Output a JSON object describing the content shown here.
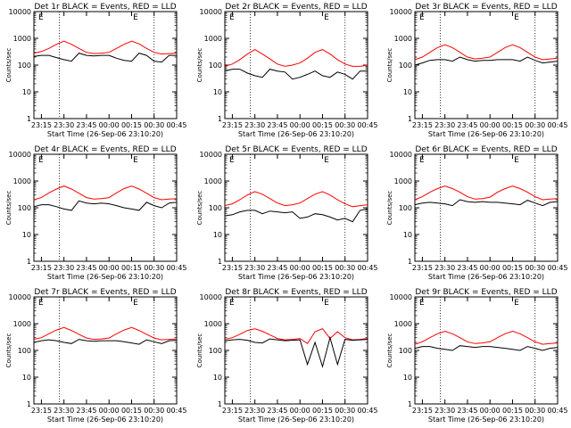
{
  "figure": {
    "background": "#ffffff"
  },
  "chart_data": [
    {
      "type": "line",
      "title": "Det 1r BLACK = Events, RED = LLD",
      "ylabel": "Counts/sec",
      "xlabel": "Start Time (26-Sep-06 23:10:20)",
      "ylim": [
        1,
        10000
      ],
      "yscale": "log",
      "grid": false,
      "top_marker": "E",
      "x_ticks": [
        "23:15",
        "23:30",
        "23:45",
        "00:00",
        "00:15",
        "00:30",
        "00:45"
      ],
      "y_ticks": [
        "1",
        "10",
        "100",
        "1000",
        "10000"
      ],
      "series": [
        {
          "color": "#ff0000",
          "x": [
            0,
            5,
            10,
            15,
            20,
            25,
            30,
            35,
            40,
            45,
            50,
            55,
            60,
            65,
            70,
            75,
            80,
            85,
            90,
            95
          ],
          "values": [
            280,
            320,
            420,
            600,
            780,
            600,
            420,
            300,
            270,
            280,
            300,
            420,
            600,
            780,
            620,
            420,
            300,
            260,
            270,
            280
          ]
        },
        {
          "color": "#000000",
          "x": [
            0,
            5,
            10,
            15,
            20,
            25,
            30,
            35,
            40,
            45,
            50,
            55,
            60,
            65,
            70,
            75,
            80,
            85,
            90,
            95
          ],
          "values": [
            210,
            230,
            230,
            190,
            160,
            140,
            280,
            230,
            220,
            230,
            230,
            180,
            150,
            140,
            280,
            230,
            140,
            130,
            230,
            230
          ]
        }
      ]
    },
    {
      "type": "line",
      "title": "Det 2r BLACK = Events, RED = LLD",
      "ylabel": "Counts/sec",
      "xlabel": "Start Time (26-Sep-06 23:10:20)",
      "ylim": [
        1,
        10000
      ],
      "yscale": "log",
      "grid": false,
      "top_marker": "E",
      "x_ticks": [
        "23:15",
        "23:30",
        "23:45",
        "00:00",
        "00:15",
        "00:30",
        "00:45"
      ],
      "y_ticks": [
        "1",
        "10",
        "100",
        "1000",
        "10000"
      ],
      "series": [
        {
          "color": "#ff0000",
          "x": [
            0,
            5,
            10,
            15,
            20,
            25,
            30,
            35,
            40,
            45,
            50,
            55,
            60,
            65,
            70,
            75,
            80,
            85,
            90,
            95
          ],
          "values": [
            90,
            110,
            160,
            260,
            380,
            260,
            170,
            110,
            90,
            100,
            120,
            180,
            300,
            380,
            260,
            160,
            110,
            90,
            90,
            100
          ]
        },
        {
          "color": "#000000",
          "x": [
            0,
            5,
            10,
            15,
            20,
            25,
            30,
            35,
            40,
            45,
            50,
            55,
            60,
            65,
            70,
            75,
            80,
            85,
            90,
            95
          ],
          "values": [
            60,
            70,
            70,
            50,
            40,
            35,
            70,
            60,
            55,
            30,
            35,
            45,
            60,
            40,
            35,
            55,
            45,
            30,
            60,
            60
          ]
        }
      ]
    },
    {
      "type": "line",
      "title": "Det 3r BLACK = Events, RED = LLD",
      "ylabel": "Counts/sec",
      "xlabel": "Start Time (26-Sep-06 23:10:20)",
      "ylim": [
        1,
        10000
      ],
      "yscale": "log",
      "grid": false,
      "top_marker": "E",
      "x_ticks": [
        "23:15",
        "23:30",
        "23:45",
        "00:00",
        "00:15",
        "00:30",
        "00:45"
      ],
      "y_ticks": [
        "1",
        "10",
        "100",
        "1000",
        "10000"
      ],
      "series": [
        {
          "color": "#ff0000",
          "x": [
            0,
            5,
            10,
            15,
            20,
            25,
            30,
            35,
            40,
            45,
            50,
            55,
            60,
            65,
            70,
            75,
            80,
            85,
            90,
            95
          ],
          "values": [
            160,
            200,
            300,
            450,
            580,
            450,
            300,
            200,
            170,
            180,
            200,
            300,
            450,
            580,
            450,
            300,
            200,
            160,
            170,
            180
          ]
        },
        {
          "color": "#000000",
          "x": [
            0,
            5,
            10,
            15,
            20,
            25,
            30,
            35,
            40,
            45,
            50,
            55,
            60,
            65,
            70,
            75,
            80,
            85,
            90,
            95
          ],
          "values": [
            100,
            120,
            150,
            160,
            160,
            140,
            200,
            160,
            140,
            150,
            150,
            160,
            160,
            160,
            140,
            200,
            150,
            120,
            130,
            140
          ]
        }
      ]
    },
    {
      "type": "line",
      "title": "Det 4r BLACK = Events, RED = LLD",
      "ylabel": "Counts/sec",
      "xlabel": "Start Time (26-Sep-06 23:10:20)",
      "ylim": [
        1,
        10000
      ],
      "yscale": "log",
      "grid": false,
      "top_marker": "E",
      "x_ticks": [
        "23:15",
        "23:30",
        "23:45",
        "00:00",
        "00:15",
        "00:30",
        "00:45"
      ],
      "y_ticks": [
        "1",
        "10",
        "100",
        "1000",
        "10000"
      ],
      "series": [
        {
          "color": "#ff0000",
          "x": [
            0,
            5,
            10,
            15,
            20,
            25,
            30,
            35,
            40,
            45,
            50,
            55,
            60,
            65,
            70,
            75,
            80,
            85,
            90,
            95
          ],
          "values": [
            200,
            240,
            360,
            500,
            650,
            500,
            350,
            240,
            210,
            220,
            240,
            360,
            520,
            650,
            500,
            350,
            240,
            200,
            210,
            220
          ]
        },
        {
          "color": "#000000",
          "x": [
            0,
            5,
            10,
            15,
            20,
            25,
            30,
            35,
            40,
            45,
            50,
            55,
            60,
            65,
            70,
            75,
            80,
            85,
            90,
            95
          ],
          "values": [
            110,
            130,
            130,
            110,
            90,
            80,
            180,
            150,
            140,
            150,
            140,
            120,
            100,
            90,
            80,
            160,
            120,
            100,
            150,
            160
          ]
        }
      ]
    },
    {
      "type": "line",
      "title": "Det 5r BLACK = Events, RED = LLD",
      "ylabel": "Counts/sec",
      "xlabel": "Start Time (26-Sep-06 23:10:20)",
      "ylim": [
        1,
        10000
      ],
      "yscale": "log",
      "grid": false,
      "top_marker": "E",
      "x_ticks": [
        "23:15",
        "23:30",
        "23:45",
        "00:00",
        "00:15",
        "00:30",
        "00:45"
      ],
      "y_ticks": [
        "1",
        "10",
        "100",
        "1000",
        "10000"
      ],
      "series": [
        {
          "color": "#ff0000",
          "x": [
            0,
            5,
            10,
            15,
            20,
            25,
            30,
            35,
            40,
            45,
            50,
            55,
            60,
            65,
            70,
            75,
            80,
            85,
            90,
            95
          ],
          "values": [
            120,
            140,
            200,
            300,
            400,
            320,
            220,
            150,
            120,
            130,
            150,
            220,
            320,
            400,
            300,
            200,
            140,
            110,
            120,
            130
          ]
        },
        {
          "color": "#000000",
          "x": [
            0,
            5,
            10,
            15,
            20,
            25,
            30,
            35,
            40,
            45,
            50,
            55,
            60,
            65,
            70,
            75,
            80,
            85,
            90,
            95
          ],
          "values": [
            50,
            55,
            70,
            80,
            80,
            60,
            75,
            70,
            65,
            70,
            40,
            45,
            60,
            55,
            45,
            35,
            40,
            30,
            80,
            90
          ]
        }
      ]
    },
    {
      "type": "line",
      "title": "Det 6r BLACK = Events, RED = LLD",
      "ylabel": "Counts/sec",
      "xlabel": "Start Time (26-Sep-06 23:10:20)",
      "ylim": [
        1,
        10000
      ],
      "yscale": "log",
      "grid": false,
      "top_marker": "E",
      "x_ticks": [
        "23:15",
        "23:30",
        "23:45",
        "00:00",
        "00:15",
        "00:30",
        "00:45"
      ],
      "y_ticks": [
        "1",
        "10",
        "100",
        "1000",
        "10000"
      ],
      "series": [
        {
          "color": "#ff0000",
          "x": [
            0,
            5,
            10,
            15,
            20,
            25,
            30,
            35,
            40,
            45,
            50,
            55,
            60,
            65,
            70,
            75,
            80,
            85,
            90,
            95
          ],
          "values": [
            200,
            260,
            380,
            520,
            650,
            520,
            380,
            260,
            210,
            220,
            250,
            380,
            520,
            650,
            520,
            380,
            260,
            200,
            210,
            220
          ]
        },
        {
          "color": "#000000",
          "x": [
            0,
            5,
            10,
            15,
            20,
            25,
            30,
            35,
            40,
            45,
            50,
            55,
            60,
            65,
            70,
            75,
            80,
            85,
            90,
            95
          ],
          "values": [
            130,
            150,
            160,
            150,
            140,
            120,
            200,
            170,
            160,
            170,
            160,
            160,
            150,
            140,
            130,
            190,
            150,
            120,
            160,
            170
          ]
        }
      ]
    },
    {
      "type": "line",
      "title": "Det 7r BLACK = Events, RED = LLD",
      "ylabel": "Counts/sec",
      "xlabel": "Start Time (26-Sep-06 23:10:20)",
      "ylim": [
        1,
        10000
      ],
      "yscale": "log",
      "grid": false,
      "top_marker": "E",
      "x_ticks": [
        "23:15",
        "23:30",
        "23:45",
        "00:00",
        "00:15",
        "00:30",
        "00:45"
      ],
      "y_ticks": [
        "1",
        "10",
        "100",
        "1000",
        "10000"
      ],
      "series": [
        {
          "color": "#ff0000",
          "x": [
            0,
            5,
            10,
            15,
            20,
            25,
            30,
            35,
            40,
            45,
            50,
            55,
            60,
            65,
            70,
            75,
            80,
            85,
            90,
            95
          ],
          "values": [
            260,
            300,
            420,
            580,
            720,
            560,
            400,
            290,
            260,
            270,
            290,
            420,
            580,
            720,
            560,
            400,
            290,
            250,
            260,
            270
          ]
        },
        {
          "color": "#000000",
          "x": [
            0,
            5,
            10,
            15,
            20,
            25,
            30,
            35,
            40,
            45,
            50,
            55,
            60,
            65,
            70,
            75,
            80,
            85,
            90,
            95
          ],
          "values": [
            200,
            230,
            250,
            230,
            200,
            180,
            260,
            230,
            220,
            230,
            230,
            230,
            210,
            190,
            170,
            250,
            210,
            180,
            230,
            240
          ]
        }
      ]
    },
    {
      "type": "line",
      "title": "Det 8r BLACK = Events, RED = LLD",
      "ylabel": "Counts/sec",
      "xlabel": "Start Time (26-Sep-06 23:10:20)",
      "ylim": [
        1,
        10000
      ],
      "yscale": "log",
      "grid": false,
      "top_marker": "E",
      "x_ticks": [
        "23:15",
        "23:30",
        "23:45",
        "00:00",
        "00:15",
        "00:30",
        "00:45"
      ],
      "y_ticks": [
        "1",
        "10",
        "100",
        "1000",
        "10000"
      ],
      "series": [
        {
          "color": "#ff0000",
          "x": [
            0,
            5,
            10,
            15,
            20,
            25,
            30,
            35,
            40,
            45,
            50,
            55,
            60,
            65,
            70,
            75,
            80,
            85,
            90,
            95
          ],
          "values": [
            260,
            300,
            400,
            560,
            640,
            520,
            380,
            280,
            250,
            260,
            280,
            180,
            500,
            650,
            280,
            500,
            300,
            250,
            260,
            280
          ]
        },
        {
          "color": "#000000",
          "x": [
            0,
            5,
            10,
            15,
            20,
            25,
            30,
            35,
            40,
            45,
            50,
            55,
            60,
            65,
            70,
            75,
            80,
            85,
            90,
            95
          ],
          "values": [
            230,
            250,
            260,
            240,
            200,
            190,
            270,
            250,
            230,
            240,
            250,
            30,
            200,
            25,
            300,
            30,
            260,
            240,
            250,
            260
          ]
        }
      ]
    },
    {
      "type": "line",
      "title": "Det 9r BLACK = Events, RED = LLD",
      "ylabel": "Counts/sec",
      "xlabel": "Start Time (26-Sep-06 23:10:20)",
      "ylim": [
        1,
        10000
      ],
      "yscale": "log",
      "grid": false,
      "top_marker": "E",
      "x_ticks": [
        "23:15",
        "23:30",
        "23:45",
        "00:00",
        "00:15",
        "00:30",
        "00:45"
      ],
      "y_ticks": [
        "1",
        "10",
        "100",
        "1000",
        "10000"
      ],
      "series": [
        {
          "color": "#ff0000",
          "x": [
            0,
            5,
            10,
            15,
            20,
            25,
            30,
            35,
            40,
            45,
            50,
            55,
            60,
            65,
            70,
            75,
            80,
            85,
            90,
            95
          ],
          "values": [
            170,
            210,
            300,
            420,
            520,
            420,
            300,
            210,
            180,
            190,
            210,
            300,
            420,
            520,
            420,
            300,
            210,
            170,
            180,
            190
          ]
        },
        {
          "color": "#000000",
          "x": [
            0,
            5,
            10,
            15,
            20,
            25,
            30,
            35,
            40,
            45,
            50,
            55,
            60,
            65,
            70,
            75,
            80,
            85,
            90,
            95
          ],
          "values": [
            120,
            140,
            140,
            120,
            110,
            100,
            150,
            140,
            130,
            140,
            140,
            130,
            120,
            110,
            100,
            140,
            120,
            100,
            120,
            130
          ]
        }
      ]
    }
  ]
}
